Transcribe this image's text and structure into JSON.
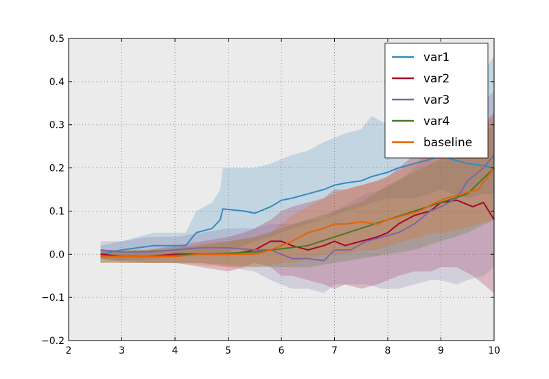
{
  "chart_data": {
    "type": "line",
    "xlim": [
      2,
      10
    ],
    "ylim": [
      -0.2,
      0.5
    ],
    "xticks": [
      "2",
      "3",
      "4",
      "5",
      "6",
      "7",
      "8",
      "9",
      "10"
    ],
    "yticks": [
      "−0.2",
      "−0.1",
      "0.0",
      "0.1",
      "0.2",
      "0.3",
      "0.4",
      "0.5"
    ],
    "grid": true,
    "legend_position": "top-right",
    "background": "#ebebeb",
    "series": [
      {
        "name": "var1",
        "color": "#348abd",
        "x": [
          2.6,
          3.0,
          3.6,
          4.2,
          4.4,
          4.7,
          4.85,
          4.9,
          5.3,
          5.5,
          5.8,
          6.0,
          6.2,
          6.5,
          6.8,
          7.0,
          7.2,
          7.5,
          7.7,
          8.0,
          8.2,
          8.5,
          8.8,
          9.0,
          9.2,
          9.5,
          9.8,
          10.0
        ],
        "y": [
          0.0,
          0.01,
          0.02,
          0.02,
          0.05,
          0.06,
          0.08,
          0.105,
          0.1,
          0.095,
          0.11,
          0.125,
          0.13,
          0.14,
          0.15,
          0.16,
          0.165,
          0.17,
          0.18,
          0.19,
          0.2,
          0.21,
          0.22,
          0.23,
          0.22,
          0.21,
          0.205,
          0.2
        ],
        "lower": [
          -0.02,
          -0.015,
          -0.01,
          -0.005,
          0.0,
          0.0,
          0.0,
          0.0,
          0.02,
          0.03,
          0.04,
          0.05,
          0.06,
          0.07,
          0.08,
          0.09,
          0.1,
          0.11,
          0.12,
          0.13,
          0.13,
          0.13,
          0.14,
          0.15,
          0.14,
          0.13,
          0.14,
          0.14
        ],
        "upper": [
          0.02,
          0.03,
          0.05,
          0.05,
          0.1,
          0.12,
          0.15,
          0.2,
          0.2,
          0.2,
          0.21,
          0.22,
          0.23,
          0.24,
          0.26,
          0.27,
          0.28,
          0.29,
          0.32,
          0.3,
          0.32,
          0.32,
          0.33,
          0.34,
          0.33,
          0.33,
          0.42,
          0.46
        ]
      },
      {
        "name": "var2",
        "color": "#a60628",
        "x": [
          2.6,
          3.0,
          3.5,
          4.0,
          4.5,
          5.0,
          5.3,
          5.5,
          5.8,
          6.0,
          6.2,
          6.5,
          6.8,
          7.0,
          7.2,
          7.5,
          7.8,
          8.0,
          8.2,
          8.5,
          8.8,
          9.0,
          9.3,
          9.6,
          9.8,
          10.0
        ],
        "y": [
          0.0,
          -0.005,
          -0.005,
          0.0,
          0.0,
          0.0,
          0.005,
          0.01,
          0.03,
          0.03,
          0.02,
          0.01,
          0.02,
          0.03,
          0.02,
          0.03,
          0.04,
          0.05,
          0.07,
          0.09,
          0.1,
          0.12,
          0.125,
          0.11,
          0.12,
          0.08
        ],
        "lower": [
          -0.01,
          -0.015,
          -0.02,
          -0.02,
          -0.03,
          -0.04,
          -0.03,
          -0.02,
          -0.03,
          -0.05,
          -0.05,
          -0.06,
          -0.07,
          -0.08,
          -0.07,
          -0.08,
          -0.07,
          -0.06,
          -0.05,
          -0.04,
          -0.04,
          -0.03,
          -0.03,
          -0.05,
          -0.07,
          -0.09
        ],
        "upper": [
          0.01,
          0.005,
          0.01,
          0.02,
          0.03,
          0.04,
          0.05,
          0.06,
          0.08,
          0.1,
          0.11,
          0.12,
          0.13,
          0.15,
          0.15,
          0.16,
          0.17,
          0.18,
          0.2,
          0.23,
          0.25,
          0.28,
          0.3,
          0.3,
          0.3,
          0.33
        ]
      },
      {
        "name": "var3",
        "color": "#7a68a6",
        "x": [
          2.6,
          3.0,
          3.5,
          4.0,
          4.5,
          5.0,
          5.5,
          5.8,
          6.0,
          6.2,
          6.5,
          6.8,
          7.0,
          7.3,
          7.6,
          7.9,
          8.2,
          8.5,
          8.8,
          9.0,
          9.3,
          9.5,
          9.8,
          10.0
        ],
        "y": [
          0.01,
          0.005,
          0.005,
          0.01,
          0.015,
          0.015,
          0.01,
          0.01,
          0.0,
          -0.01,
          -0.01,
          -0.015,
          0.01,
          0.01,
          0.03,
          0.04,
          0.05,
          0.07,
          0.1,
          0.11,
          0.13,
          0.17,
          0.2,
          0.23
        ],
        "lower": [
          -0.01,
          -0.02,
          -0.02,
          -0.02,
          -0.02,
          -0.03,
          -0.04,
          -0.06,
          -0.07,
          -0.08,
          -0.08,
          -0.09,
          -0.07,
          -0.07,
          -0.07,
          -0.08,
          -0.08,
          -0.07,
          -0.06,
          -0.06,
          -0.07,
          -0.06,
          -0.05,
          -0.03
        ],
        "upper": [
          0.03,
          0.03,
          0.04,
          0.04,
          0.05,
          0.06,
          0.06,
          0.07,
          0.07,
          0.07,
          0.08,
          0.08,
          0.1,
          0.12,
          0.14,
          0.15,
          0.17,
          0.2,
          0.24,
          0.26,
          0.28,
          0.3,
          0.35,
          0.38
        ]
      },
      {
        "name": "var4",
        "color": "#467821",
        "x": [
          2.6,
          3.5,
          4.5,
          5.5,
          6.5,
          7.0,
          7.5,
          8.0,
          8.5,
          9.0,
          9.5,
          10.0
        ],
        "y": [
          -0.005,
          -0.005,
          0.0,
          0.005,
          0.02,
          0.04,
          0.06,
          0.08,
          0.1,
          0.12,
          0.14,
          0.2
        ],
        "lower": [
          -0.02,
          -0.02,
          -0.02,
          -0.03,
          -0.03,
          -0.02,
          -0.01,
          0.0,
          0.01,
          0.03,
          0.05,
          0.08
        ],
        "upper": [
          0.01,
          0.01,
          0.02,
          0.04,
          0.08,
          0.1,
          0.12,
          0.16,
          0.19,
          0.22,
          0.25,
          0.3
        ]
      },
      {
        "name": "baseline",
        "color": "#e66101",
        "x": [
          2.6,
          3.0,
          3.5,
          4.0,
          4.5,
          5.0,
          5.5,
          5.8,
          6.0,
          6.2,
          6.5,
          6.8,
          7.0,
          7.2,
          7.5,
          7.8,
          8.0,
          8.3,
          8.6,
          8.9,
          9.1,
          9.4,
          9.7,
          10.0
        ],
        "y": [
          -0.005,
          -0.005,
          -0.005,
          -0.005,
          0.0,
          0.0,
          0.0,
          0.01,
          0.02,
          0.03,
          0.05,
          0.06,
          0.07,
          0.07,
          0.075,
          0.07,
          0.08,
          0.09,
          0.1,
          0.12,
          0.13,
          0.14,
          0.15,
          0.2
        ],
        "lower": [
          -0.02,
          -0.02,
          -0.02,
          -0.02,
          -0.025,
          -0.03,
          -0.03,
          -0.025,
          -0.02,
          -0.02,
          -0.01,
          0.0,
          0.0,
          0.0,
          0.01,
          0.01,
          0.02,
          0.03,
          0.04,
          0.05,
          0.05,
          0.06,
          0.07,
          0.08
        ],
        "upper": [
          0.01,
          0.01,
          0.01,
          0.01,
          0.025,
          0.03,
          0.04,
          0.05,
          0.07,
          0.09,
          0.11,
          0.13,
          0.14,
          0.15,
          0.16,
          0.17,
          0.18,
          0.2,
          0.22,
          0.24,
          0.25,
          0.27,
          0.29,
          0.32
        ]
      }
    ]
  }
}
